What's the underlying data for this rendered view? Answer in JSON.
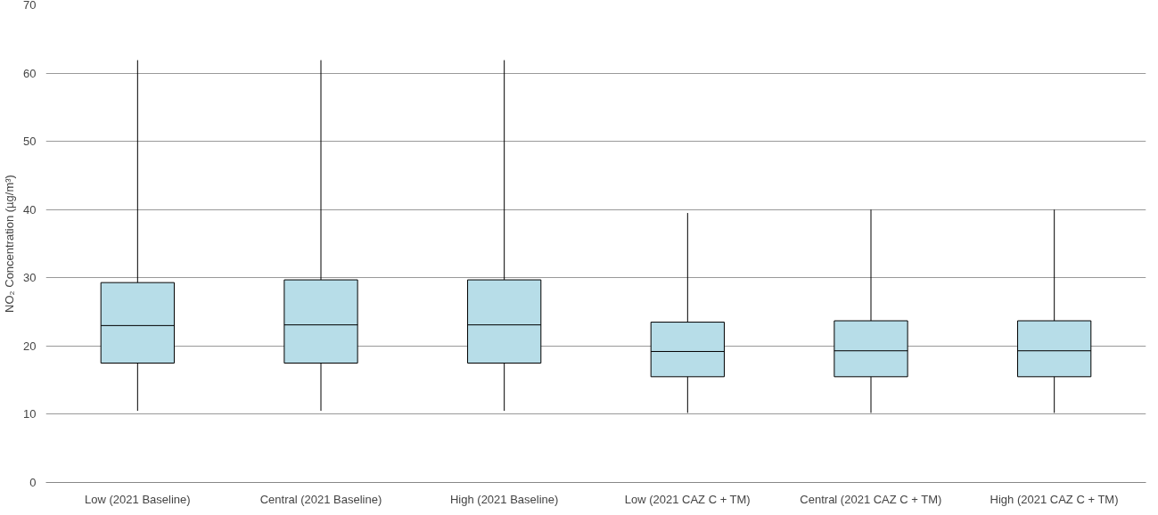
{
  "chart_data": {
    "type": "box",
    "ylabel": "NO₂ Concentration (µg/m³)",
    "categories": [
      "Low (2021 Baseline)",
      "Central (2021 Baseline)",
      "High (2021 Baseline)",
      "Low (2021 CAZ C + TM)",
      "Central (2021 CAZ C + TM)",
      "High (2021 CAZ C + TM)"
    ],
    "boxes": [
      {
        "low": 10.5,
        "q1": 17.5,
        "median": 23.0,
        "q3": 29.3,
        "high": 61.9
      },
      {
        "low": 10.5,
        "q1": 17.5,
        "median": 23.1,
        "q3": 29.7,
        "high": 61.9
      },
      {
        "low": 10.5,
        "q1": 17.5,
        "median": 23.1,
        "q3": 29.7,
        "high": 61.9
      },
      {
        "low": 10.2,
        "q1": 15.5,
        "median": 19.2,
        "q3": 23.5,
        "high": 39.5
      },
      {
        "low": 10.2,
        "q1": 15.5,
        "median": 19.3,
        "q3": 23.7,
        "high": 40.0
      },
      {
        "low": 10.2,
        "q1": 15.5,
        "median": 19.3,
        "q3": 23.7,
        "high": 40.0
      }
    ],
    "color": "#b7dde8",
    "ylim": [
      0,
      70
    ],
    "yticks": [
      0,
      10,
      20,
      30,
      40,
      50,
      60,
      70
    ],
    "grid": "y"
  }
}
